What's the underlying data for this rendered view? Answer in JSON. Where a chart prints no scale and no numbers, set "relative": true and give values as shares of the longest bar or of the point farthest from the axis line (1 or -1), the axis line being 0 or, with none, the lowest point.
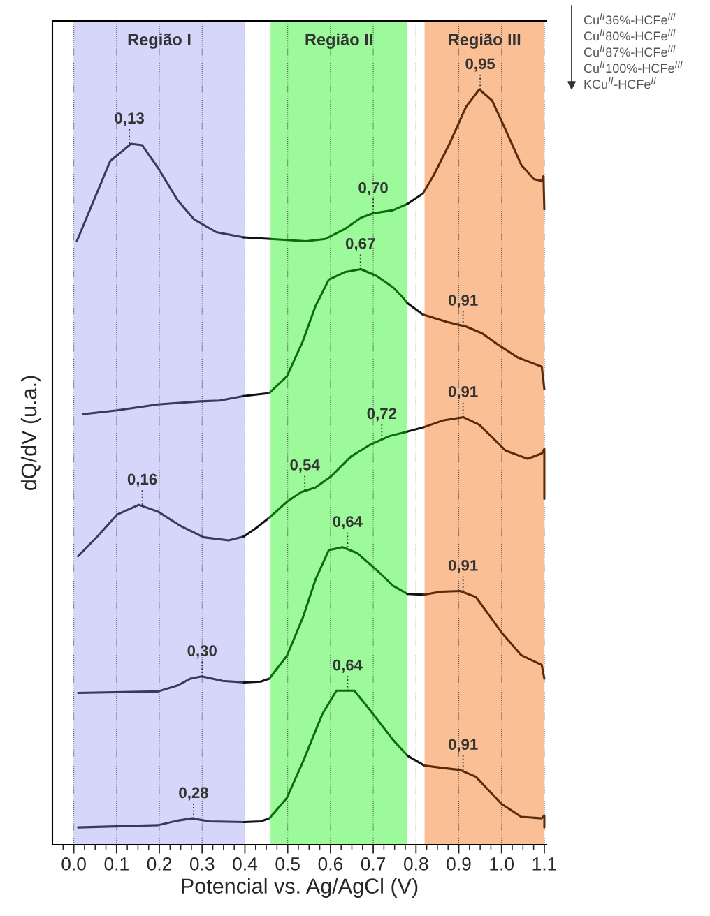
{
  "chart_data": {
    "type": "line",
    "relative": true,
    "xlabel": "Potencial vs. Ag/AgCl (V)",
    "ylabel": "dQ/dV (u.a.)",
    "xlim": [
      -0.05,
      1.105
    ],
    "xticks": [
      {
        "value": 0,
        "label": "0.0"
      },
      {
        "value": 0.1,
        "label": "0.1"
      },
      {
        "value": 0.2,
        "label": "0.2"
      },
      {
        "value": 0.3,
        "label": "0.3"
      },
      {
        "value": 0.4,
        "label": "0.4"
      },
      {
        "value": 0.5,
        "label": "0.5"
      },
      {
        "value": 0.6,
        "label": "0.6"
      },
      {
        "value": 0.7,
        "label": "0.7"
      },
      {
        "value": 0.8,
        "label": "0.8"
      },
      {
        "value": 0.9,
        "label": "0.9"
      },
      {
        "value": 1.0,
        "label": "1.0"
      },
      {
        "value": 1.1,
        "label": "1.1"
      },
      {
        "value": -0.025,
        "label": null
      },
      {
        "value": 0.025,
        "label": null
      },
      {
        "value": 0.05,
        "label": null
      },
      {
        "value": 0.075,
        "label": null
      },
      {
        "value": 0.125,
        "label": null
      },
      {
        "value": 0.15,
        "label": null
      },
      {
        "value": 0.175,
        "label": null
      },
      {
        "value": 0.225,
        "label": null
      },
      {
        "value": 0.25,
        "label": null
      },
      {
        "value": 0.275,
        "label": null
      },
      {
        "value": 0.325,
        "label": null
      },
      {
        "value": 0.35,
        "label": null
      },
      {
        "value": 0.375,
        "label": null
      },
      {
        "value": 0.425,
        "label": null
      },
      {
        "value": 0.45,
        "label": null
      },
      {
        "value": 0.475,
        "label": null
      },
      {
        "value": 0.525,
        "label": null
      },
      {
        "value": 0.55,
        "label": null
      },
      {
        "value": 0.575,
        "label": null
      },
      {
        "value": 0.625,
        "label": null
      },
      {
        "value": 0.65,
        "label": null
      },
      {
        "value": 0.675,
        "label": null
      },
      {
        "value": 0.725,
        "label": null
      },
      {
        "value": 0.75,
        "label": null
      },
      {
        "value": 0.775,
        "label": null
      },
      {
        "value": 0.825,
        "label": null
      },
      {
        "value": 0.85,
        "label": null
      },
      {
        "value": 0.875,
        "label": null
      },
      {
        "value": 0.925,
        "label": null
      },
      {
        "value": 0.95,
        "label": null
      },
      {
        "value": 0.975,
        "label": null
      },
      {
        "value": 1.025,
        "label": null
      },
      {
        "value": 1.05,
        "label": null
      },
      {
        "value": 1.075,
        "label": null
      }
    ],
    "grid": "x",
    "tick_labels": "x",
    "bands": [
      {
        "axis": "x",
        "from": 0.0,
        "to": 0.4,
        "label": "Região I",
        "color": "#d6d6fa"
      },
      {
        "axis": "x",
        "from": 0.46,
        "to": 0.78,
        "label": "Região II",
        "color": "#9cfa9a"
      },
      {
        "axis": "x",
        "from": 0.82,
        "to": 1.1,
        "label": "Região III",
        "color": "#fbbf96"
      }
    ],
    "series": [
      {
        "color": "#3b3a5c",
        "x": [
          0.007,
          0.085,
          0.134,
          0.16,
          0.197,
          0.243,
          0.281,
          0.333,
          0.397
        ],
        "values": [
          0.799,
          0.905,
          0.928,
          0.926,
          0.896,
          0.853,
          0.828,
          0.811,
          0.804
        ]
      },
      {
        "color": "#111111",
        "x": [
          0.397,
          0.46
        ],
        "values": [
          0.804,
          0.802
        ]
      },
      {
        "color": "#0a6e0a",
        "x": [
          0.46,
          0.543,
          0.588,
          0.633,
          0.671,
          0.7,
          0.746,
          0.779
        ],
        "values": [
          0.802,
          0.799,
          0.802,
          0.815,
          0.83,
          0.836,
          0.84,
          0.848
        ]
      },
      {
        "color": "#111111",
        "x": [
          0.779,
          0.816
        ],
        "values": [
          0.848,
          0.862
        ]
      },
      {
        "color": "#5a2a0a",
        "x": [
          0.816,
          0.842,
          0.88,
          0.917,
          0.948,
          0.978,
          1.009,
          1.046,
          1.076,
          1.094,
          1.098,
          1.1
        ],
        "values": [
          0.862,
          0.887,
          0.93,
          0.977,
          1.0,
          0.985,
          0.947,
          0.9,
          0.881,
          0.879,
          0.885,
          0.841
        ]
      },
      {
        "color": "#3b3a5c",
        "x": [
          0.021,
          0.101,
          0.197,
          0.295,
          0.341,
          0.397
        ],
        "values": [
          0.57,
          0.575,
          0.583,
          0.587,
          0.588,
          0.594
        ]
      },
      {
        "color": "#111111",
        "x": [
          0.397,
          0.457
        ],
        "values": [
          0.594,
          0.598
        ]
      },
      {
        "color": "#0a6e0a",
        "x": [
          0.457,
          0.498,
          0.535,
          0.565,
          0.596,
          0.633,
          0.671,
          0.708,
          0.746,
          0.767,
          0.78
        ],
        "values": [
          0.598,
          0.62,
          0.666,
          0.713,
          0.748,
          0.758,
          0.762,
          0.753,
          0.738,
          0.726,
          0.717
        ]
      },
      {
        "color": "#111111",
        "x": [
          0.78,
          0.816
        ],
        "values": [
          0.717,
          0.702
        ]
      },
      {
        "color": "#5a2a0a",
        "x": [
          0.816,
          0.873,
          0.917,
          0.955,
          0.992,
          1.038,
          1.094,
          1.1
        ],
        "values": [
          0.702,
          0.692,
          0.686,
          0.677,
          0.662,
          0.645,
          0.633,
          0.603
        ]
      },
      {
        "color": "#3b3a5c",
        "x": [
          0.01,
          0.055,
          0.101,
          0.152,
          0.197,
          0.25,
          0.304,
          0.362,
          0.397
        ],
        "values": [
          0.382,
          0.408,
          0.437,
          0.45,
          0.441,
          0.422,
          0.407,
          0.403,
          0.408
        ]
      },
      {
        "color": "#111111",
        "x": [
          0.397,
          0.423,
          0.457
        ],
        "values": [
          0.408,
          0.418,
          0.433
        ]
      },
      {
        "color": "#0a6e0a",
        "x": [
          0.457,
          0.498,
          0.532,
          0.565,
          0.602,
          0.648,
          0.694,
          0.738,
          0.78
        ],
        "values": [
          0.433,
          0.454,
          0.467,
          0.473,
          0.488,
          0.514,
          0.53,
          0.541,
          0.547
        ]
      },
      {
        "color": "#111111",
        "x": [
          0.78,
          0.819
        ],
        "values": [
          0.547,
          0.553
        ]
      },
      {
        "color": "#5a2a0a",
        "x": [
          0.819,
          0.865,
          0.911,
          0.948,
          1.009,
          1.061,
          1.094,
          1.1,
          1.1
        ],
        "values": [
          0.553,
          0.562,
          0.566,
          0.556,
          0.522,
          0.511,
          0.518,
          0.524,
          0.458
        ]
      },
      {
        "color": "#3b3a5c",
        "x": [
          0.01,
          0.197,
          0.243,
          0.273,
          0.299,
          0.348,
          0.398
        ],
        "values": [
          0.201,
          0.203,
          0.211,
          0.22,
          0.223,
          0.217,
          0.215
        ]
      },
      {
        "color": "#111111",
        "x": [
          0.398,
          0.437,
          0.457
        ],
        "values": [
          0.215,
          0.216,
          0.22
        ]
      },
      {
        "color": "#0a6e0a",
        "x": [
          0.457,
          0.498,
          0.535,
          0.565,
          0.596,
          0.628,
          0.663,
          0.715,
          0.746,
          0.78
        ],
        "values": [
          0.22,
          0.25,
          0.3,
          0.351,
          0.39,
          0.394,
          0.386,
          0.36,
          0.343,
          0.332
        ]
      },
      {
        "color": "#111111",
        "x": [
          0.78,
          0.819
        ],
        "values": [
          0.332,
          0.331
        ]
      },
      {
        "color": "#5a2a0a",
        "x": [
          0.819,
          0.858,
          0.903,
          0.94,
          1.0,
          1.046,
          1.094,
          1.1
        ],
        "values": [
          0.331,
          0.335,
          0.336,
          0.328,
          0.281,
          0.251,
          0.238,
          0.22
        ]
      },
      {
        "color": "#3b3a5c",
        "x": [
          0.01,
          0.197,
          0.243,
          0.276,
          0.318,
          0.398
        ],
        "values": [
          0.023,
          0.026,
          0.032,
          0.035,
          0.031,
          0.03
        ]
      },
      {
        "color": "#111111",
        "x": [
          0.398,
          0.437,
          0.457
        ],
        "values": [
          0.03,
          0.031,
          0.035
        ]
      },
      {
        "color": "#0a6e0a",
        "x": [
          0.457,
          0.498,
          0.535,
          0.581,
          0.614,
          0.656,
          0.7,
          0.746,
          0.78
        ],
        "values": [
          0.035,
          0.062,
          0.109,
          0.173,
          0.204,
          0.204,
          0.173,
          0.139,
          0.118
        ]
      },
      {
        "color": "#111111",
        "x": [
          0.78,
          0.819
        ],
        "values": [
          0.118,
          0.105
        ]
      },
      {
        "color": "#5a2a0a",
        "x": [
          0.819,
          0.858,
          0.903,
          0.94,
          1.0,
          1.046,
          1.094,
          1.1,
          1.1
        ],
        "values": [
          0.105,
          0.102,
          0.099,
          0.09,
          0.054,
          0.037,
          0.035,
          0.039,
          0.023
        ]
      }
    ],
    "annotations": [
      {
        "text": "0,13",
        "x": 0.13,
        "y": 0.928
      },
      {
        "text": "0,70",
        "x": 0.7,
        "y": 0.836
      },
      {
        "text": "0,95",
        "x": 0.95,
        "y": 1.0
      },
      {
        "text": "0,67",
        "x": 0.67,
        "y": 0.762
      },
      {
        "text": "0,91",
        "x": 0.91,
        "y": 0.687
      },
      {
        "text": "0,16",
        "x": 0.16,
        "y": 0.45
      },
      {
        "text": "0,54",
        "x": 0.54,
        "y": 0.469
      },
      {
        "text": "0,72",
        "x": 0.72,
        "y": 0.537
      },
      {
        "text": "0,91",
        "x": 0.91,
        "y": 0.566
      },
      {
        "text": "0,30",
        "x": 0.3,
        "y": 0.223
      },
      {
        "text": "0,64",
        "x": 0.64,
        "y": 0.394
      },
      {
        "text": "0,91",
        "x": 0.91,
        "y": 0.336
      },
      {
        "text": "0,28",
        "x": 0.28,
        "y": 0.035
      },
      {
        "text": "0,64",
        "x": 0.64,
        "y": 0.204
      },
      {
        "text": "0,91",
        "x": 0.91,
        "y": 0.099
      },
      "Cu$^{II}$36%-HCFe$^{III}$",
      "Cu$^{II}$80%-HCFe$^{III}$",
      "Cu$^{II}$87%-HCFe$^{III}$",
      "Cu$^{II}$100%-HCFe$^{III}$",
      "KCu$^{II}$-HCFe$^{II}$"
    ]
  }
}
